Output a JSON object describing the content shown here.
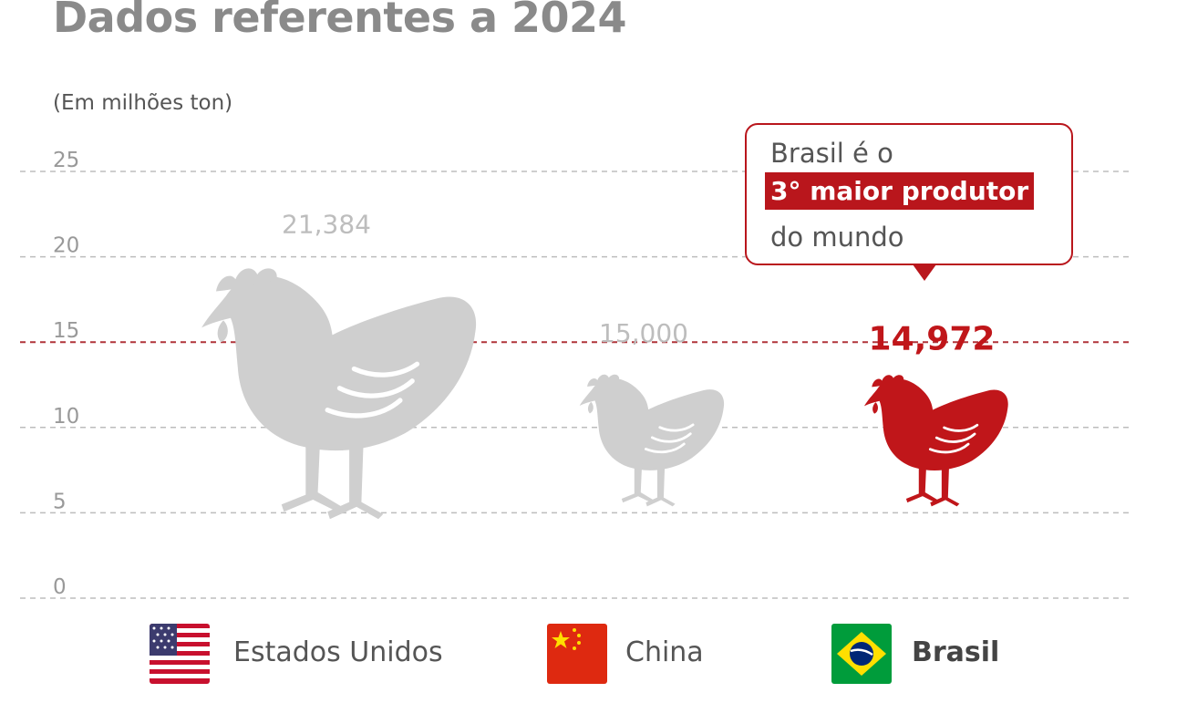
{
  "title": "Dados referentes a 2024",
  "unit_label": "(Em milhões ton)",
  "colors": {
    "grey": "#cfcfcf",
    "highlight": "#c0161a",
    "gridline": "#bdbdbd",
    "reference_line": "#b0343a"
  },
  "callout": {
    "line1": "Brasil é o",
    "highlight": "3° maior produtor",
    "line3": "do mundo"
  },
  "legend": [
    {
      "label": "Estados Unidos",
      "icon": "us-flag-icon"
    },
    {
      "label": "China",
      "icon": "china-flag-icon"
    },
    {
      "label": "Brasil",
      "icon": "brazil-flag-icon"
    }
  ],
  "chart_data": {
    "type": "bar",
    "categories": [
      "Estados Unidos",
      "China",
      "Brasil"
    ],
    "values": [
      21.384,
      15.0,
      14.972
    ],
    "value_labels": [
      "21,384",
      "15,000",
      "14,972"
    ],
    "highlight_index": 2,
    "ylim": [
      0,
      25
    ],
    "yticks": [
      "0",
      "5",
      "10",
      "15",
      "20",
      "25"
    ],
    "reference_line_value": 15,
    "grid": true,
    "mark_shape": "chicken-icon"
  }
}
